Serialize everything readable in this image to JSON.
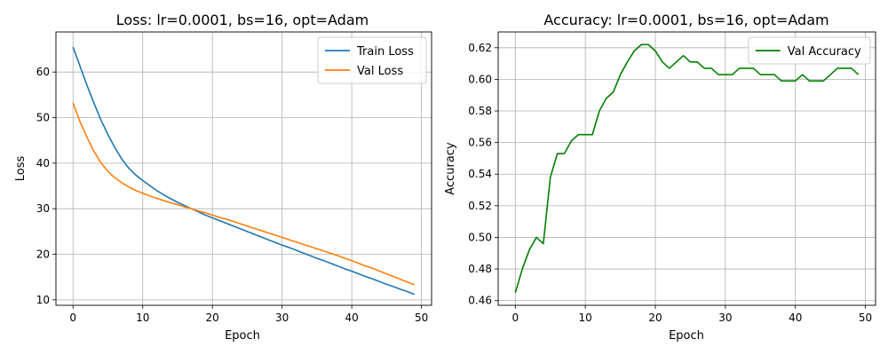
{
  "chart_data": [
    {
      "type": "line",
      "title": "Loss: lr=0.0001, bs=16, opt=Adam",
      "xlabel": "Epoch",
      "ylabel": "Loss",
      "xlim": [
        -2.45,
        51.45
      ],
      "ylim": [
        8.8,
        68.8
      ],
      "xticks": [
        0,
        10,
        20,
        30,
        40,
        50
      ],
      "yticks": [
        10,
        20,
        30,
        40,
        50,
        60
      ],
      "grid": true,
      "legend_position": "top-right",
      "series": [
        {
          "name": "Train Loss",
          "color": "#1f77b4",
          "x": [
            0,
            1,
            2,
            3,
            4,
            5,
            6,
            7,
            8,
            9,
            10,
            11,
            12,
            13,
            14,
            15,
            16,
            17,
            18,
            19,
            20,
            21,
            22,
            23,
            24,
            25,
            26,
            27,
            28,
            29,
            30,
            31,
            32,
            33,
            34,
            35,
            36,
            37,
            38,
            39,
            40,
            41,
            42,
            43,
            44,
            45,
            46,
            47,
            48,
            49
          ],
          "values": [
            65.5,
            61.3,
            57.1,
            53.2,
            49.5,
            46.3,
            43.4,
            40.9,
            38.9,
            37.4,
            36.2,
            35.1,
            34.0,
            33.1,
            32.2,
            31.4,
            30.7,
            30.0,
            29.3,
            28.6,
            28.0,
            27.4,
            26.8,
            26.2,
            25.6,
            25.0,
            24.4,
            23.8,
            23.2,
            22.6,
            22.0,
            21.5,
            20.9,
            20.3,
            19.7,
            19.1,
            18.6,
            18.0,
            17.4,
            16.8,
            16.3,
            15.7,
            15.1,
            14.6,
            14.0,
            13.4,
            12.9,
            12.3,
            11.8,
            11.2
          ]
        },
        {
          "name": "Val Loss",
          "color": "#ff7f0e",
          "x": [
            0,
            1,
            2,
            3,
            4,
            5,
            6,
            7,
            8,
            9,
            10,
            11,
            12,
            13,
            14,
            15,
            16,
            17,
            18,
            19,
            20,
            21,
            22,
            23,
            24,
            25,
            26,
            27,
            28,
            29,
            30,
            31,
            32,
            33,
            34,
            35,
            36,
            37,
            38,
            39,
            40,
            41,
            42,
            43,
            44,
            45,
            46,
            47,
            48,
            49
          ],
          "values": [
            53.2,
            49.1,
            45.7,
            42.6,
            40.1,
            38.2,
            36.8,
            35.7,
            34.8,
            34.0,
            33.4,
            32.8,
            32.3,
            31.8,
            31.3,
            30.9,
            30.4,
            30.0,
            29.5,
            29.1,
            28.6,
            28.1,
            27.7,
            27.2,
            26.7,
            26.2,
            25.7,
            25.2,
            24.7,
            24.2,
            23.7,
            23.2,
            22.7,
            22.2,
            21.7,
            21.2,
            20.7,
            20.2,
            19.7,
            19.1,
            18.6,
            18.0,
            17.4,
            16.9,
            16.3,
            15.7,
            15.1,
            14.5,
            13.9,
            13.3
          ]
        }
      ]
    },
    {
      "type": "line",
      "title": "Accuracy: lr=0.0001, bs=16, opt=Adam",
      "xlabel": "Epoch",
      "ylabel": "Accuracy",
      "xlim": [
        -2.45,
        51.45
      ],
      "ylim": [
        0.457,
        0.63
      ],
      "xticks": [
        0,
        10,
        20,
        30,
        40,
        50
      ],
      "yticks": [
        0.46,
        0.48,
        0.5,
        0.52,
        0.54,
        0.56,
        0.58,
        0.6,
        0.62
      ],
      "grid": true,
      "legend_position": "top-right",
      "series": [
        {
          "name": "Val Accuracy",
          "color": "#008000",
          "x": [
            0,
            1,
            2,
            3,
            4,
            5,
            6,
            7,
            8,
            9,
            10,
            11,
            12,
            13,
            14,
            15,
            16,
            17,
            18,
            19,
            20,
            21,
            22,
            23,
            24,
            25,
            26,
            27,
            28,
            29,
            30,
            31,
            32,
            33,
            34,
            35,
            36,
            37,
            38,
            39,
            40,
            41,
            42,
            43,
            44,
            45,
            46,
            47,
            48,
            49
          ],
          "values": [
            0.465,
            0.48,
            0.492,
            0.5,
            0.496,
            0.538,
            0.553,
            0.553,
            0.561,
            0.565,
            0.565,
            0.565,
            0.58,
            0.588,
            0.592,
            0.603,
            0.611,
            0.618,
            0.622,
            0.622,
            0.618,
            0.611,
            0.607,
            0.611,
            0.615,
            0.611,
            0.611,
            0.607,
            0.607,
            0.603,
            0.603,
            0.603,
            0.607,
            0.607,
            0.607,
            0.603,
            0.603,
            0.603,
            0.599,
            0.599,
            0.599,
            0.603,
            0.599,
            0.599,
            0.599,
            0.603,
            0.607,
            0.607,
            0.607,
            0.603
          ]
        }
      ]
    }
  ]
}
